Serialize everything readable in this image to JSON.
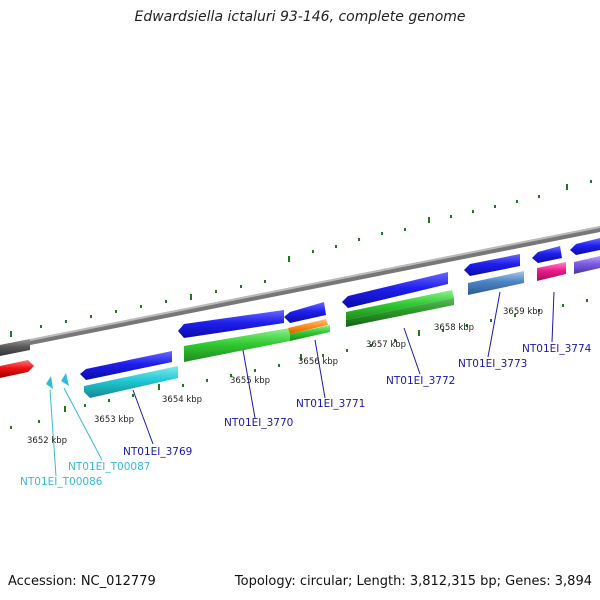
{
  "title": "Edwardsiella ictaluri 93-146, complete genome",
  "accession": "Accession: NC_012779",
  "topology": "Topology: circular; Length: 3,812,315 bp; Genes: 3,894",
  "kbp_labels": [
    "3652 kbp",
    "3653 kbp",
    "3654 kbp",
    "3655 kbp",
    "3656 kbp",
    "3657 kbp",
    "3658 kbp",
    "3659 kbp"
  ],
  "gene_labels": [
    "NT01EI_3769",
    "NT01EI_3770",
    "NT01EI_3771",
    "NT01EI_3772",
    "NT01EI_3773",
    "NT01EI_3774"
  ],
  "rna_labels": [
    "NT01EI_T00086",
    "NT01EI_T00087"
  ],
  "colors": {
    "backbone": "#8a8a8a",
    "tick": "#1f7a1f",
    "gene_label": "#1a1aaa",
    "rna_label": "#33bbdd"
  }
}
